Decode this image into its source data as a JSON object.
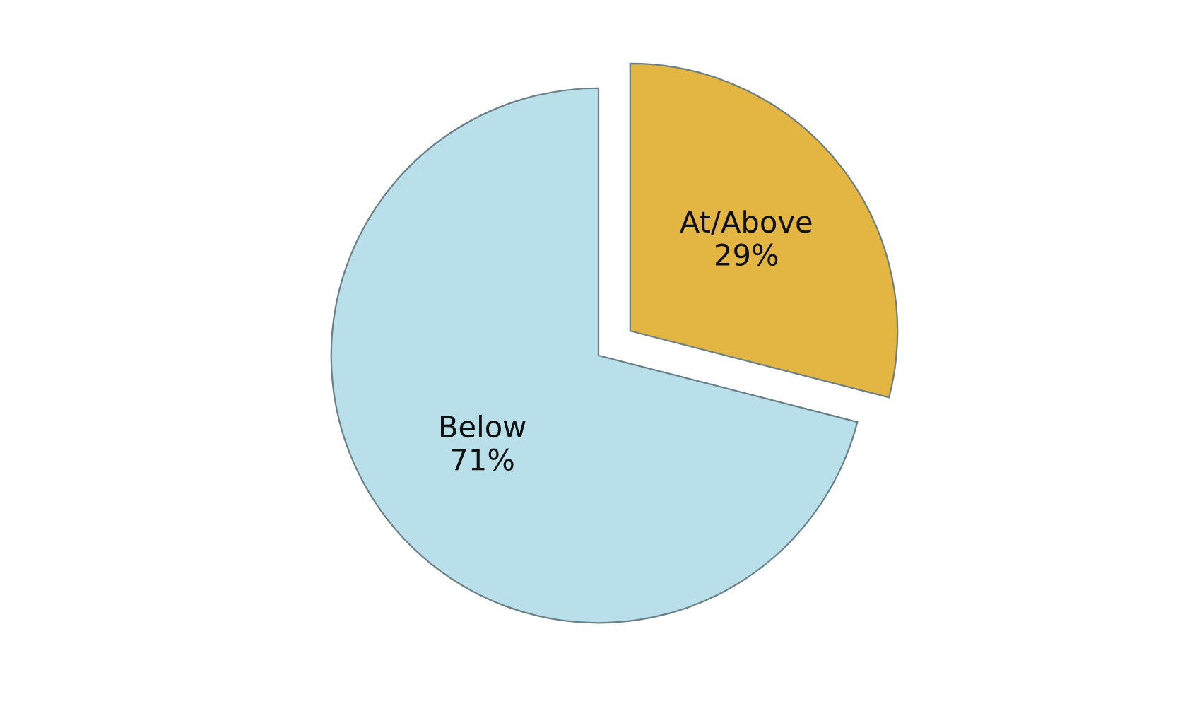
{
  "chart_data": {
    "type": "pie",
    "categories": [
      "At/Above",
      "Below"
    ],
    "values": [
      29,
      71
    ],
    "colors": [
      "#e3b542",
      "#b8dfea"
    ],
    "value_labels": [
      "29%",
      "71%"
    ]
  }
}
